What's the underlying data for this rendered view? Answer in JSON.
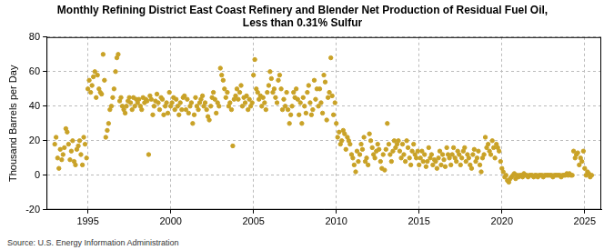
{
  "chart_data": {
    "type": "scatter",
    "title": [
      "Monthly Refining District East Coast Refinery and Blender Net Production of Residual Fuel Oil,",
      "Less than 0.31% Sulfur"
    ],
    "y_label": "Thousand Barrels per Day",
    "annotation": "Source: U.S. Energy Information Administration",
    "color": "#c9a227",
    "marker": "circle",
    "grid": true,
    "xlim": [
      1992.5,
      2026
    ],
    "xticks": [
      1995,
      2000,
      2005,
      2010,
      2015,
      2020,
      2025
    ],
    "ylim": [
      -20,
      80
    ],
    "yticks": [
      -20,
      0,
      20,
      40,
      60,
      80
    ],
    "x": [
      1993,
      1993.08,
      1993.17,
      1993.25,
      1993.33,
      1993.42,
      1993.5,
      1993.58,
      1993.67,
      1993.75,
      1993.83,
      1993.92,
      1994,
      1994.08,
      1994.17,
      1994.25,
      1994.33,
      1994.42,
      1994.5,
      1994.58,
      1994.67,
      1994.75,
      1994.83,
      1994.92,
      1995,
      1995.08,
      1995.17,
      1995.25,
      1995.33,
      1995.42,
      1995.5,
      1995.58,
      1995.67,
      1995.75,
      1995.83,
      1995.92,
      1996,
      1996.08,
      1996.17,
      1996.25,
      1996.33,
      1996.42,
      1996.5,
      1996.58,
      1996.67,
      1996.75,
      1996.83,
      1996.92,
      1997,
      1997.08,
      1997.17,
      1997.25,
      1997.33,
      1997.42,
      1997.5,
      1997.58,
      1997.67,
      1997.75,
      1997.83,
      1997.92,
      1998,
      1998.08,
      1998.17,
      1998.25,
      1998.33,
      1998.42,
      1998.5,
      1998.58,
      1998.67,
      1998.75,
      1998.83,
      1998.92,
      1999,
      1999.08,
      1999.17,
      1999.25,
      1999.33,
      1999.42,
      1999.5,
      1999.58,
      1999.67,
      1999.75,
      1999.83,
      1999.92,
      2000,
      2000.08,
      2000.17,
      2000.25,
      2000.33,
      2000.42,
      2000.5,
      2000.58,
      2000.67,
      2000.75,
      2000.83,
      2000.92,
      2001,
      2001.08,
      2001.17,
      2001.25,
      2001.33,
      2001.42,
      2001.5,
      2001.58,
      2001.67,
      2001.75,
      2001.83,
      2001.92,
      2002,
      2002.08,
      2002.17,
      2002.25,
      2002.33,
      2002.42,
      2002.5,
      2002.58,
      2002.67,
      2002.75,
      2002.83,
      2002.92,
      2003,
      2003.08,
      2003.17,
      2003.25,
      2003.33,
      2003.42,
      2003.5,
      2003.58,
      2003.67,
      2003.75,
      2003.83,
      2003.92,
      2004,
      2004.08,
      2004.17,
      2004.25,
      2004.33,
      2004.42,
      2004.5,
      2004.58,
      2004.67,
      2004.75,
      2004.83,
      2004.92,
      2005,
      2005.08,
      2005.17,
      2005.25,
      2005.33,
      2005.42,
      2005.5,
      2005.58,
      2005.67,
      2005.75,
      2005.83,
      2005.92,
      2006,
      2006.08,
      2006.17,
      2006.25,
      2006.33,
      2006.42,
      2006.5,
      2006.58,
      2006.67,
      2006.75,
      2006.83,
      2006.92,
      2007,
      2007.08,
      2007.17,
      2007.25,
      2007.33,
      2007.42,
      2007.5,
      2007.58,
      2007.67,
      2007.75,
      2007.83,
      2007.92,
      2008,
      2008.08,
      2008.17,
      2008.25,
      2008.33,
      2008.42,
      2008.5,
      2008.58,
      2008.67,
      2008.75,
      2008.83,
      2008.92,
      2009,
      2009.08,
      2009.17,
      2009.25,
      2009.33,
      2009.42,
      2009.5,
      2009.58,
      2009.67,
      2009.75,
      2009.83,
      2009.92,
      2010,
      2010.08,
      2010.17,
      2010.25,
      2010.33,
      2010.42,
      2010.5,
      2010.58,
      2010.67,
      2010.75,
      2010.83,
      2010.92,
      2011,
      2011.08,
      2011.17,
      2011.25,
      2011.33,
      2011.42,
      2011.5,
      2011.58,
      2011.67,
      2011.75,
      2011.83,
      2011.92,
      2012,
      2012.08,
      2012.17,
      2012.25,
      2012.33,
      2012.42,
      2012.5,
      2012.58,
      2012.67,
      2012.75,
      2012.83,
      2012.92,
      2013,
      2013.08,
      2013.17,
      2013.25,
      2013.33,
      2013.42,
      2013.5,
      2013.58,
      2013.67,
      2013.75,
      2013.83,
      2013.92,
      2014,
      2014.08,
      2014.17,
      2014.25,
      2014.33,
      2014.42,
      2014.5,
      2014.58,
      2014.67,
      2014.75,
      2014.83,
      2014.92,
      2015,
      2015.08,
      2015.17,
      2015.25,
      2015.33,
      2015.42,
      2015.5,
      2015.58,
      2015.67,
      2015.75,
      2015.83,
      2015.92,
      2016,
      2016.08,
      2016.17,
      2016.25,
      2016.33,
      2016.42,
      2016.5,
      2016.58,
      2016.67,
      2016.75,
      2016.83,
      2016.92,
      2017,
      2017.08,
      2017.17,
      2017.25,
      2017.33,
      2017.42,
      2017.5,
      2017.58,
      2017.67,
      2017.75,
      2017.83,
      2017.92,
      2018,
      2018.08,
      2018.17,
      2018.25,
      2018.33,
      2018.42,
      2018.5,
      2018.58,
      2018.67,
      2018.75,
      2018.83,
      2018.92,
      2019,
      2019.08,
      2019.17,
      2019.25,
      2019.33,
      2019.42,
      2019.5,
      2019.58,
      2019.67,
      2019.75,
      2019.83,
      2019.92,
      2020,
      2020.08,
      2020.17,
      2020.25,
      2020.33,
      2020.42,
      2020.5,
      2020.58,
      2020.67,
      2020.75,
      2020.83,
      2020.92,
      2021,
      2021.08,
      2021.17,
      2021.25,
      2021.33,
      2021.42,
      2021.5,
      2021.58,
      2021.67,
      2021.75,
      2021.83,
      2021.92,
      2022,
      2022.08,
      2022.17,
      2022.25,
      2022.33,
      2022.42,
      2022.5,
      2022.58,
      2022.67,
      2022.75,
      2022.83,
      2022.92,
      2023,
      2023.08,
      2023.17,
      2023.25,
      2023.33,
      2023.42,
      2023.5,
      2023.58,
      2023.67,
      2023.75,
      2023.83,
      2023.92,
      2024,
      2024.08,
      2024.17,
      2024.25,
      2024.33,
      2024.42,
      2024.5,
      2024.58,
      2024.67,
      2024.75,
      2024.83,
      2024.92,
      2025,
      2025.08,
      2025.17,
      2025.25,
      2025.33,
      2025.42
    ],
    "values": [
      18,
      22,
      10,
      4,
      15,
      9,
      12,
      16,
      27,
      25,
      18,
      9,
      14,
      20,
      8,
      6,
      15,
      17,
      20,
      12,
      6,
      22,
      18,
      10,
      50,
      55,
      48,
      52,
      57,
      60,
      45,
      58,
      50,
      48,
      47,
      70,
      55,
      22,
      26,
      30,
      38,
      40,
      45,
      50,
      60,
      68,
      70,
      43,
      45,
      40,
      38,
      36,
      40,
      43,
      45,
      42,
      38,
      45,
      40,
      44,
      42,
      44,
      40,
      38,
      45,
      42,
      44,
      43,
      12,
      46,
      44,
      35,
      40,
      43,
      47,
      42,
      38,
      45,
      44,
      35,
      40,
      42,
      36,
      48,
      40,
      42,
      45,
      38,
      44,
      40,
      35,
      42,
      38,
      45,
      46,
      38,
      44,
      36,
      40,
      42,
      30,
      35,
      45,
      40,
      38,
      42,
      44,
      46,
      40,
      42,
      38,
      34,
      32,
      40,
      45,
      48,
      44,
      36,
      42,
      40,
      62,
      58,
      55,
      50,
      45,
      48,
      40,
      42,
      38,
      17,
      44,
      46,
      50,
      44,
      48,
      52,
      40,
      45,
      42,
      46,
      38,
      44,
      40,
      42,
      58,
      67,
      50,
      48,
      44,
      46,
      40,
      45,
      42,
      38,
      48,
      52,
      60,
      56,
      48,
      50,
      45,
      42,
      55,
      58,
      50,
      38,
      44,
      40,
      48,
      38,
      30,
      35,
      40,
      48,
      45,
      50,
      44,
      35,
      42,
      30,
      45,
      40,
      36,
      48,
      52,
      42,
      35,
      38,
      55,
      44,
      50,
      40,
      50,
      42,
      36,
      58,
      54,
      32,
      45,
      48,
      68,
      46,
      35,
      42,
      30,
      22,
      25,
      18,
      20,
      26,
      24,
      15,
      22,
      20,
      18,
      12,
      10,
      6,
      2,
      14,
      8,
      12,
      18,
      15,
      22,
      8,
      10,
      6,
      24,
      20,
      16,
      12,
      10,
      14,
      18,
      15,
      8,
      4,
      12,
      3,
      15,
      30,
      18,
      12,
      8,
      14,
      20,
      16,
      18,
      20,
      14,
      10,
      18,
      12,
      8,
      20,
      16,
      10,
      6,
      14,
      18,
      12,
      10,
      14,
      6,
      10,
      14,
      8,
      12,
      5,
      8,
      16,
      10,
      12,
      6,
      9,
      8,
      4,
      10,
      14,
      6,
      12,
      9,
      5,
      16,
      12,
      10,
      6,
      12,
      16,
      10,
      8,
      14,
      12,
      6,
      10,
      14,
      16,
      8,
      12,
      10,
      6,
      4,
      12,
      15,
      8,
      10,
      14,
      6,
      2,
      10,
      12,
      22,
      16,
      18,
      14,
      12,
      20,
      16,
      10,
      18,
      16,
      14,
      8,
      4,
      2,
      -1,
      0,
      -3,
      -4,
      -2,
      -1,
      0,
      1,
      -2,
      0,
      -1,
      0,
      0,
      -1,
      1,
      0,
      0,
      -1,
      0,
      0,
      0,
      -1,
      0,
      0,
      -1,
      0,
      0,
      0,
      -1,
      0,
      0,
      0,
      0,
      0,
      0,
      -1,
      0,
      0,
      0,
      0,
      0,
      -1,
      0,
      0,
      0,
      1,
      0,
      1,
      0,
      0,
      14,
      10,
      12,
      13,
      6,
      10,
      8,
      14,
      4,
      0,
      2,
      1,
      -1,
      0
    ]
  }
}
